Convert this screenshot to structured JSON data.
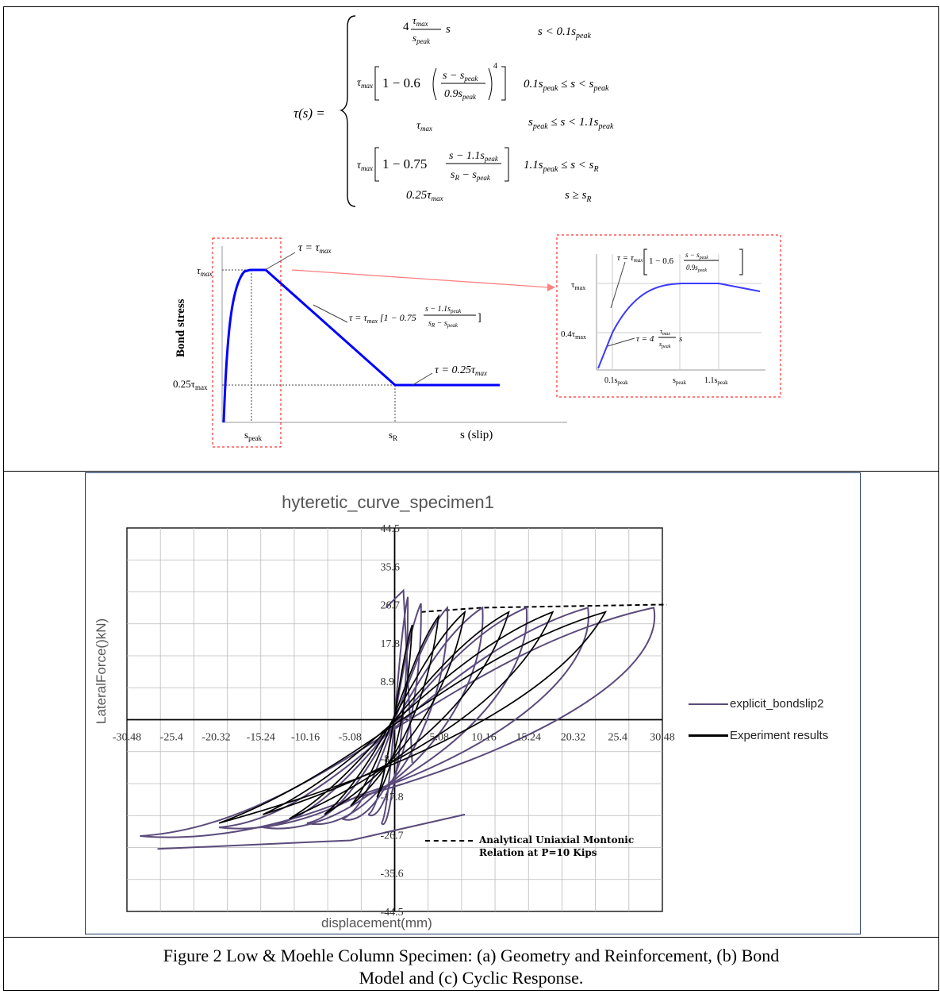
{
  "equation": {
    "lhs": "τ(s) =",
    "cases": [
      {
        "expr": "4 (τmax / speak) s",
        "cond": "s < 0.1speak"
      },
      {
        "expr": "τmax [1 − 0.6((s − speak)/(0.9speak))⁴]",
        "cond": "0.1speak ≤ s < speak"
      },
      {
        "expr": "τmax",
        "cond": "speak ≤ s < 1.1speak"
      },
      {
        "expr": "τmax [1 − 0.75 (s − 1.1speak)/(sR − speak)]",
        "cond": "1.1speak ≤ s < sR"
      },
      {
        "expr": "0.25τmax",
        "cond": "s ≥ sR"
      }
    ]
  },
  "bond_model": {
    "y_label": "Bond stress",
    "x_label": "s (slip)",
    "y_ticks": [
      "τmax",
      "0.25τmax"
    ],
    "x_ticks": [
      "speak",
      "sR"
    ],
    "annotations": [
      "τ = τmax",
      "τ = τmax[1 − 0.75 (s − 1.1speak)/(sR − speak)]",
      "τ = 0.25τmax"
    ],
    "inset": {
      "y_ticks": [
        "τmax",
        "0.4τmax"
      ],
      "x_ticks": [
        "0.1speak",
        "speak",
        "1.1speak"
      ],
      "annotations": [
        "τ = τmax[1 − 0.6((s − speak)/(0.9speak))⁴]",
        "τ = 4 (τmax/speak) s"
      ]
    },
    "colors": {
      "curve": "#0000ff",
      "box": "#ff0000",
      "arrow": "#ff6666"
    }
  },
  "chart_data": {
    "type": "line",
    "title": "hyteretic_curve_specimen1",
    "xlabel": "displacement(mm)",
    "ylabel": "LateralForce()kN)",
    "xlim": [
      -30.48,
      30.48
    ],
    "ylim": [
      -44.5,
      44.5
    ],
    "x_ticks": [
      "-30.48",
      "-25.4",
      "-20.32",
      "-15.24",
      "-10.16",
      "-5.08",
      "0",
      "5.08",
      "10.16",
      "15.24",
      "20.32",
      "25.4",
      "30.48"
    ],
    "x_tick_labels": [
      "-30.48",
      "-25.4",
      "-20.32",
      "-15.24",
      "-10.16",
      "-5.08",
      "",
      "5.08",
      "10.16",
      "15.24",
      "20.32",
      "25.4",
      "30.48"
    ],
    "y_ticks": [
      "44.5",
      "35.6",
      "26.7",
      "17.8",
      "8.9",
      "-8.9",
      "-17.8",
      "-26.7",
      "-35.6",
      "-44.5"
    ],
    "y_values": [
      44.5,
      35.6,
      26.7,
      17.8,
      8.9,
      -8.9,
      -17.8,
      -26.7,
      -35.6,
      -44.5
    ],
    "grid": true,
    "legend_position": "right",
    "series": [
      {
        "name": "explicit_bondslip2",
        "color": "#5a4a7a"
      },
      {
        "name": "Experiment results",
        "color": "#000000"
      }
    ],
    "annotation": [
      "Analytical Uniaxial Montonic",
      "Relation at P=10 Kips"
    ]
  },
  "caption": {
    "line1": "Figure 2 Low & Moehle Column Specimen: (a) Geometry and Reinforcement, (b) Bond",
    "line2": "Model and (c) Cyclic Response."
  }
}
